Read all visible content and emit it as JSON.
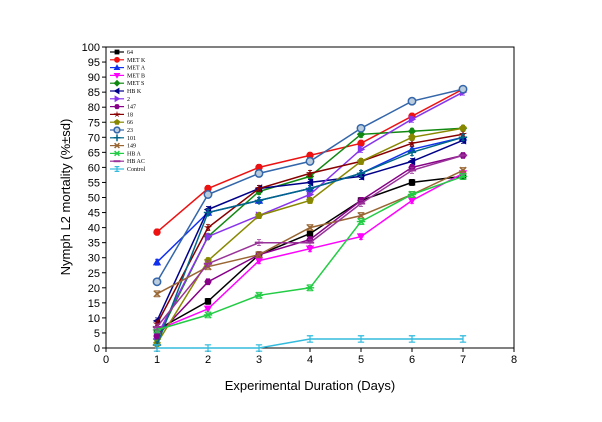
{
  "chart_data": {
    "type": "line",
    "title": "",
    "xlabel": "Experimental Duration (Days)",
    "ylabel": "Nymph L2 mortality (%±sd)",
    "xlim": [
      0,
      8
    ],
    "ylim": [
      0,
      100
    ],
    "x_ticks": [
      "0",
      "1",
      "2",
      "3",
      "4",
      "5",
      "6",
      "7",
      "8"
    ],
    "y_ticks": [
      "0",
      "5",
      "10",
      "15",
      "20",
      "25",
      "30",
      "35",
      "40",
      "45",
      "50",
      "55",
      "60",
      "65",
      "70",
      "75",
      "80",
      "85",
      "90",
      "95",
      "100"
    ],
    "x": [
      1,
      2,
      3,
      4,
      5,
      6,
      7
    ],
    "grid": false,
    "legend_position": "top-left",
    "series": [
      {
        "name": "64",
        "color": "#000000",
        "marker": "square",
        "values": [
          6,
          15.5,
          31,
          38,
          49,
          55,
          57
        ]
      },
      {
        "name": "MET K",
        "color": "#ee1111",
        "marker": "circle",
        "values": [
          38.5,
          53,
          60,
          64,
          68,
          77,
          86
        ]
      },
      {
        "name": "MET A",
        "color": "#1030ee",
        "marker": "triangle",
        "values": [
          28.5,
          45,
          49,
          53,
          58,
          66,
          70
        ]
      },
      {
        "name": "MET B",
        "color": "#ff00ff",
        "marker": "tri-down",
        "values": [
          6,
          13,
          29,
          33,
          37,
          49,
          58
        ]
      },
      {
        "name": "MET S",
        "color": "#118811",
        "marker": "diamond",
        "values": [
          3,
          37,
          52,
          57,
          71,
          72,
          73
        ]
      },
      {
        "name": "HB K",
        "color": "#000088",
        "marker": "tri-left",
        "values": [
          9,
          46,
          53,
          55,
          57,
          62,
          69
        ]
      },
      {
        "name": "2",
        "color": "#8833ee",
        "marker": "tri-right",
        "values": [
          4,
          37,
          44,
          51,
          66,
          76,
          85
        ]
      },
      {
        "name": "147",
        "color": "#880088",
        "marker": "hexagon",
        "values": [
          4,
          22,
          31,
          36,
          49,
          60,
          64
        ]
      },
      {
        "name": "18",
        "color": "#880000",
        "marker": "star",
        "values": [
          8,
          40,
          53,
          58,
          62,
          68,
          71
        ]
      },
      {
        "name": "66",
        "color": "#888800",
        "marker": "pentagon",
        "values": [
          1.5,
          29,
          44,
          49,
          62,
          70,
          73
        ]
      },
      {
        "name": "23",
        "color": "#3366aa",
        "marker": "circle-open",
        "values": [
          22,
          51,
          58,
          62,
          73,
          82,
          86
        ]
      },
      {
        "name": "101",
        "color": "#006688",
        "marker": "plus",
        "values": [
          1,
          45,
          49,
          53,
          58,
          65,
          70
        ]
      },
      {
        "name": "149",
        "color": "#996633",
        "marker": "x",
        "values": [
          18,
          27,
          31,
          40,
          44,
          51,
          59
        ]
      },
      {
        "name": "HB A",
        "color": "#22cc44",
        "marker": "asterisk",
        "values": [
          6,
          11,
          17.5,
          20,
          42,
          51,
          57
        ]
      },
      {
        "name": "HB AC",
        "color": "#993399",
        "marker": "dash",
        "values": [
          7,
          28,
          35,
          35,
          48,
          59,
          64
        ]
      },
      {
        "name": "Control",
        "color": "#33bbdd",
        "marker": "bar",
        "values": [
          0,
          0,
          0,
          3,
          3,
          3,
          3
        ]
      }
    ]
  }
}
